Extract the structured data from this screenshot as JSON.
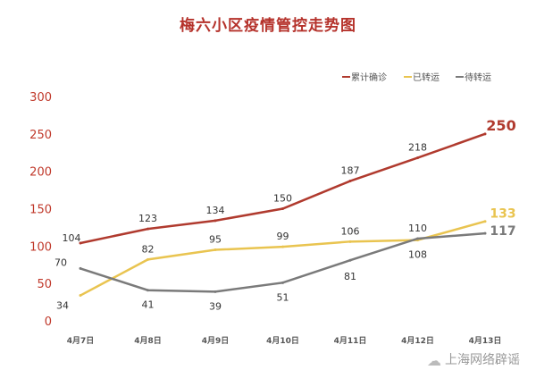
{
  "chart_data": {
    "type": "line",
    "title": "梅六小区疫情管控走势图",
    "categories": [
      "4月7日",
      "4月8日",
      "4月9日",
      "4月10日",
      "4月11日",
      "4月12日",
      "4月13日"
    ],
    "series": [
      {
        "name": "累计确诊",
        "color": "#b03a2e",
        "values": [
          104,
          123,
          134,
          150,
          187,
          218,
          250
        ]
      },
      {
        "name": "已转运",
        "color": "#e9c450",
        "values": [
          34,
          82,
          95,
          99,
          106,
          108,
          133
        ]
      },
      {
        "name": "待转运",
        "color": "#7a7a7a",
        "values": [
          70,
          41,
          39,
          51,
          81,
          110,
          117
        ]
      }
    ],
    "yticks": [
      0,
      50,
      100,
      150,
      200,
      250,
      300
    ],
    "ylim": [
      0,
      300
    ],
    "grid": false,
    "legend": "top-right",
    "axis_label_color": "#c0392b"
  },
  "watermark": "上海网络辟谣"
}
